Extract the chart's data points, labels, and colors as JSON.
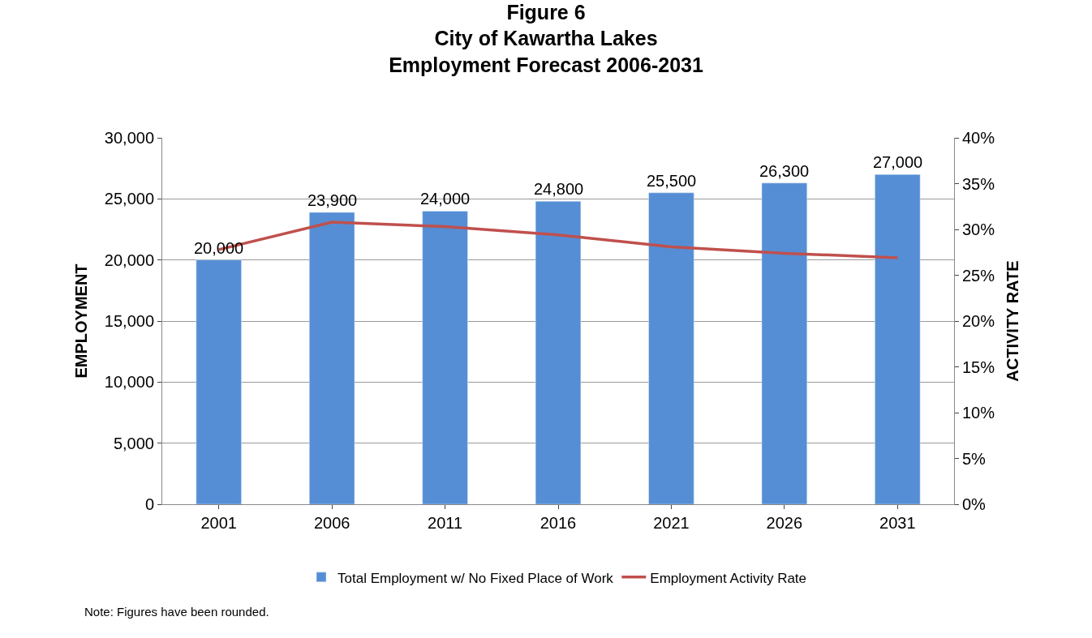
{
  "chart_data": {
    "type": "bar",
    "title": "Figure 6\nCity of Kawartha Lakes\nEmployment Forecast 2006-2031",
    "ylabel": "EMPLOYMENT",
    "y2label": "ACTIVITY RATE",
    "categories": [
      "2001",
      "2006",
      "2011",
      "2016",
      "2021",
      "2026",
      "2031"
    ],
    "series": [
      {
        "name": "Total Employment w/ No Fixed Place of Work",
        "color": "#558ed5",
        "values": [
          20000,
          23900,
          24000,
          24800,
          25500,
          26300,
          27000
        ],
        "value_labels": [
          "20,000",
          "23,900",
          "24,000",
          "24,800",
          "25,500",
          "26,300",
          "27,000"
        ]
      },
      {
        "name": "Employment Activity Rate",
        "type": "line",
        "axis": "y2",
        "color": "#c0504d",
        "values": [
          27.8,
          30.8,
          30.3,
          29.4,
          28.1,
          27.4,
          26.9
        ]
      }
    ],
    "ylim": [
      0,
      30000
    ],
    "yticks": [
      {
        "value": 0,
        "label": "0"
      },
      {
        "value": 5000,
        "label": "5,000"
      },
      {
        "value": 10000,
        "label": "10,000"
      },
      {
        "value": 15000,
        "label": "15,000"
      },
      {
        "value": 20000,
        "label": "20,000"
      },
      {
        "value": 25000,
        "label": "25,000"
      },
      {
        "value": 30000,
        "label": "30,000"
      }
    ],
    "y2lim": [
      0,
      40
    ],
    "y2ticks": [
      {
        "value": 0,
        "label": "0%"
      },
      {
        "value": 5,
        "label": "5%"
      },
      {
        "value": 10,
        "label": "10%"
      },
      {
        "value": 15,
        "label": "15%"
      },
      {
        "value": 20,
        "label": "20%"
      },
      {
        "value": 25,
        "label": "25%"
      },
      {
        "value": 30,
        "label": "30%"
      },
      {
        "value": 35,
        "label": "35%"
      },
      {
        "value": 40,
        "label": "40%"
      }
    ],
    "grid": "y",
    "legend": "bottom",
    "marker": "none",
    "line_style": "solid",
    "annotations": [
      "Note: Figures have been rounded."
    ]
  }
}
